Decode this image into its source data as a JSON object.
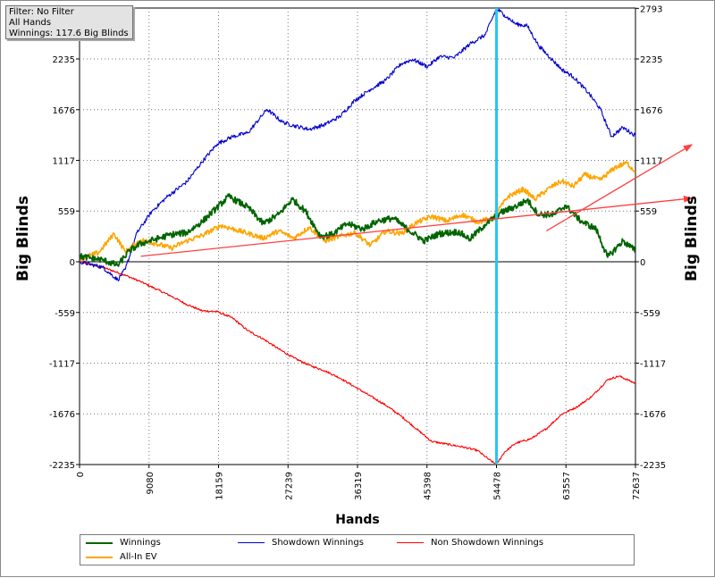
{
  "info_box": {
    "filter": "Filter: No Filter",
    "hands": "All Hands",
    "winnings": "Winnings: 117.6 Big Blinds"
  },
  "chart_data": {
    "type": "line",
    "xlabel": "Hands",
    "ylabel": "Big Blinds",
    "ylabel_right": "Big Blinds",
    "x_ticks": [
      "0",
      "9080",
      "18159",
      "27239",
      "36319",
      "45398",
      "54478",
      "63557",
      "72637"
    ],
    "y_ticks": [
      "-2235",
      "-1676",
      "-1117",
      "-559",
      "0",
      "559",
      "1117",
      "1676",
      "2235",
      "2793"
    ],
    "xlim": [
      0,
      72637
    ],
    "ylim": [
      -2235,
      2793
    ],
    "grid": "dotted",
    "vertical_marker_x": 54478,
    "series": [
      {
        "name": "Winnings",
        "color": "#006400",
        "points": [
          [
            0,
            60
          ],
          [
            3000,
            20
          ],
          [
            5000,
            -40
          ],
          [
            6500,
            120
          ],
          [
            8000,
            200
          ],
          [
            10000,
            250
          ],
          [
            12000,
            300
          ],
          [
            14000,
            320
          ],
          [
            16000,
            440
          ],
          [
            19500,
            720
          ],
          [
            22000,
            600
          ],
          [
            24000,
            420
          ],
          [
            26000,
            520
          ],
          [
            27800,
            690
          ],
          [
            29500,
            560
          ],
          [
            31500,
            280
          ],
          [
            33000,
            300
          ],
          [
            35000,
            420
          ],
          [
            37000,
            360
          ],
          [
            39000,
            450
          ],
          [
            41000,
            480
          ],
          [
            43000,
            350
          ],
          [
            45000,
            230
          ],
          [
            47000,
            310
          ],
          [
            49500,
            330
          ],
          [
            51000,
            250
          ],
          [
            53000,
            410
          ],
          [
            55000,
            540
          ],
          [
            57000,
            610
          ],
          [
            58500,
            680
          ],
          [
            60000,
            520
          ],
          [
            62000,
            520
          ],
          [
            63500,
            620
          ],
          [
            65500,
            450
          ],
          [
            67500,
            360
          ],
          [
            69000,
            50
          ],
          [
            71000,
            230
          ],
          [
            72637,
            120
          ]
        ]
      },
      {
        "name": "All-In EV",
        "color": "#ffa500",
        "points": [
          [
            0,
            30
          ],
          [
            2500,
            100
          ],
          [
            4500,
            310
          ],
          [
            6000,
            110
          ],
          [
            8000,
            240
          ],
          [
            10000,
            200
          ],
          [
            12000,
            150
          ],
          [
            14000,
            230
          ],
          [
            16000,
            290
          ],
          [
            18500,
            400
          ],
          [
            20500,
            350
          ],
          [
            22500,
            300
          ],
          [
            24000,
            260
          ],
          [
            26000,
            340
          ],
          [
            28000,
            260
          ],
          [
            30000,
            380
          ],
          [
            32000,
            230
          ],
          [
            34000,
            280
          ],
          [
            36000,
            320
          ],
          [
            38000,
            180
          ],
          [
            40000,
            340
          ],
          [
            42000,
            310
          ],
          [
            44000,
            430
          ],
          [
            46000,
            500
          ],
          [
            48000,
            450
          ],
          [
            50000,
            520
          ],
          [
            52000,
            440
          ],
          [
            54000,
            480
          ],
          [
            56000,
            720
          ],
          [
            58000,
            800
          ],
          [
            59500,
            690
          ],
          [
            61500,
            820
          ],
          [
            63000,
            890
          ],
          [
            64500,
            830
          ],
          [
            66000,
            960
          ],
          [
            68000,
            900
          ],
          [
            70000,
            1040
          ],
          [
            71500,
            1090
          ],
          [
            72637,
            990
          ]
        ]
      },
      {
        "name": "Showdown Winnings",
        "color": "#0000cd",
        "points": [
          [
            0,
            0
          ],
          [
            3000,
            -60
          ],
          [
            5000,
            -200
          ],
          [
            6000,
            -80
          ],
          [
            7500,
            320
          ],
          [
            9500,
            560
          ],
          [
            11500,
            720
          ],
          [
            14000,
            880
          ],
          [
            16000,
            1100
          ],
          [
            18000,
            1300
          ],
          [
            20000,
            1380
          ],
          [
            22000,
            1420
          ],
          [
            24500,
            1680
          ],
          [
            26500,
            1540
          ],
          [
            28000,
            1500
          ],
          [
            30000,
            1460
          ],
          [
            32000,
            1510
          ],
          [
            34000,
            1600
          ],
          [
            36000,
            1780
          ],
          [
            38000,
            1900
          ],
          [
            40000,
            2000
          ],
          [
            42000,
            2180
          ],
          [
            43500,
            2230
          ],
          [
            45500,
            2150
          ],
          [
            47000,
            2260
          ],
          [
            49000,
            2250
          ],
          [
            51000,
            2400
          ],
          [
            53000,
            2500
          ],
          [
            54478,
            2790
          ],
          [
            55500,
            2720
          ],
          [
            57000,
            2620
          ],
          [
            58500,
            2600
          ],
          [
            60000,
            2380
          ],
          [
            61500,
            2250
          ],
          [
            63000,
            2120
          ],
          [
            64500,
            2040
          ],
          [
            66500,
            1860
          ],
          [
            68000,
            1690
          ],
          [
            69500,
            1380
          ],
          [
            71000,
            1480
          ],
          [
            72637,
            1390
          ]
        ]
      },
      {
        "name": "Non Showdown Winnings",
        "color": "#ff0000",
        "points": [
          [
            0,
            0
          ],
          [
            3000,
            -60
          ],
          [
            5000,
            -120
          ],
          [
            6000,
            -150
          ],
          [
            8000,
            -220
          ],
          [
            10000,
            -300
          ],
          [
            12000,
            -380
          ],
          [
            14000,
            -470
          ],
          [
            16000,
            -540
          ],
          [
            18000,
            -550
          ],
          [
            20000,
            -620
          ],
          [
            22000,
            -760
          ],
          [
            24000,
            -850
          ],
          [
            26000,
            -960
          ],
          [
            28000,
            -1060
          ],
          [
            30000,
            -1140
          ],
          [
            32000,
            -1200
          ],
          [
            34000,
            -1280
          ],
          [
            36000,
            -1380
          ],
          [
            38000,
            -1480
          ],
          [
            40000,
            -1580
          ],
          [
            42000,
            -1700
          ],
          [
            44000,
            -1840
          ],
          [
            46000,
            -1980
          ],
          [
            48000,
            -2010
          ],
          [
            50000,
            -2040
          ],
          [
            52000,
            -2080
          ],
          [
            53500,
            -2180
          ],
          [
            54478,
            -2235
          ],
          [
            55500,
            -2100
          ],
          [
            57000,
            -2000
          ],
          [
            59000,
            -1950
          ],
          [
            61000,
            -1840
          ],
          [
            63000,
            -1680
          ],
          [
            65000,
            -1600
          ],
          [
            67000,
            -1480
          ],
          [
            69000,
            -1300
          ],
          [
            70500,
            -1260
          ],
          [
            72637,
            -1340
          ]
        ]
      }
    ],
    "trend_lines": [
      {
        "color": "#ff4040",
        "from": [
          8000,
          60
        ],
        "to": [
          80000,
          700
        ]
      },
      {
        "color": "#ff4040",
        "from": [
          61000,
          340
        ],
        "to": [
          80000,
          1290
        ]
      }
    ]
  },
  "legend": {
    "winnings": "Winnings",
    "all_in_ev": "All-In EV",
    "showdown": "Showdown Winnings",
    "non_showdown": "Non Showdown Winnings"
  }
}
